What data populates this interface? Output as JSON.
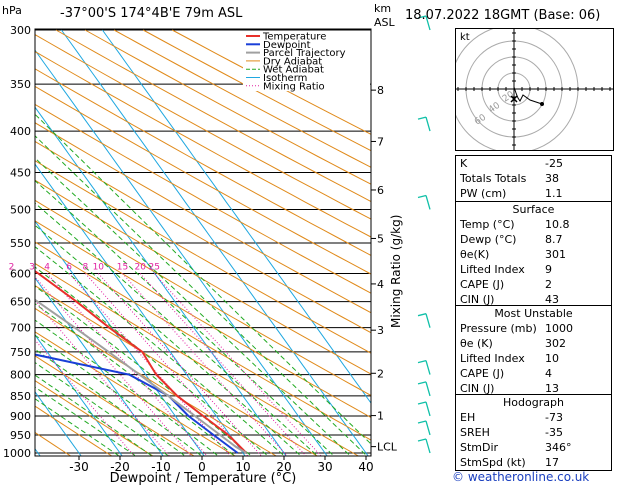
{
  "header": {
    "location": "-37°00'S  174°4B'E  79m  ASL",
    "datetime": "18.07.2022  18GMT  (Base: 06)",
    "hpa_label": "hPa",
    "km_label": "km",
    "asl_label": "ASL"
  },
  "colors": {
    "temperature": "#e8302a",
    "dewpoint": "#1a3fd8",
    "parcel": "#a0a0a0",
    "dry_adiabat": "#e08a1a",
    "wet_adiabat": "#22aa22",
    "isotherm": "#20a8e0",
    "mixing_ratio": "#e020a0",
    "wind_barbs": "#10c0a8"
  },
  "chart_data": {
    "type": "line",
    "title": "",
    "xlabel": "Dewpoint / Temperature (°C)",
    "ylabel_right": "Mixing Ratio (g/kg)",
    "x_ticks": [
      -30,
      -20,
      -10,
      0,
      10,
      20,
      30,
      40
    ],
    "xlim": [
      -40,
      40
    ],
    "pressure_levels": [
      300,
      350,
      400,
      450,
      500,
      550,
      600,
      650,
      700,
      750,
      800,
      850,
      900,
      950,
      1000
    ],
    "ylim_hpa": [
      300,
      1015
    ],
    "km_ticks": [
      {
        "label": "8",
        "p": 356
      },
      {
        "label": "7",
        "p": 412
      },
      {
        "label": "6",
        "p": 473
      },
      {
        "label": "5",
        "p": 543
      },
      {
        "label": "4",
        "p": 618
      },
      {
        "label": "3",
        "p": 705
      },
      {
        "label": "2",
        "p": 797
      },
      {
        "label": "1",
        "p": 899
      },
      {
        "label": "LCL",
        "p": 982
      }
    ],
    "mixing_ratio_labels": [
      "1",
      "2",
      "3",
      "4",
      "6",
      "8",
      "10",
      "15",
      "20",
      "25"
    ],
    "mixing_ratio_values": [
      1,
      2,
      3,
      4,
      6,
      8,
      10,
      15,
      20,
      25
    ],
    "legend": [
      "Temperature",
      "Dewpoint",
      "Parcel Trajectory",
      "Dry Adiabat",
      "Wet Adiabat",
      "Isotherm",
      "Mixing Ratio"
    ],
    "legend_position": "top-right",
    "series": [
      {
        "name": "Temperature",
        "p": [
          1000,
          950,
          900,
          850,
          800,
          750,
          700,
          650,
          600,
          550,
          500,
          450,
          400,
          350,
          300
        ],
        "t": [
          10.8,
          9.6,
          6.8,
          4.0,
          2.6,
          3.2,
          -0.6,
          -4.0,
          -8.4,
          -13.6,
          -18.8,
          -25.0,
          -32.5,
          -41.0,
          -48.5
        ]
      },
      {
        "name": "Dewpoint",
        "p": [
          1000,
          950,
          900,
          850,
          800,
          750,
          700,
          650,
          600,
          550,
          500,
          450,
          400,
          350,
          300
        ],
        "t": [
          8.7,
          6.0,
          3.2,
          1.9,
          -4.0,
          -26.0,
          -38.0,
          -36.5,
          -32.5,
          -32.0,
          -24.0,
          -25.5,
          -33.0,
          -36.5,
          -43.0
        ]
      },
      {
        "name": "Parcel Trajectory",
        "p": [
          1000,
          982,
          950,
          900,
          850,
          800,
          750,
          700,
          650,
          600,
          550,
          500,
          450,
          400,
          350,
          300
        ],
        "t": [
          10.8,
          9.3,
          7.6,
          4.8,
          1.8,
          -1.5,
          -5.0,
          -9.0,
          -13.5,
          -18.5,
          -24.0,
          -30.0,
          -37.0,
          -45.0,
          -54.0,
          -63.0
        ]
      }
    ]
  },
  "hodograph": {
    "label": "kt",
    "ring_labels": [
      "20",
      "40",
      "60"
    ]
  },
  "indices": {
    "basic": [
      {
        "label": "K",
        "value": "-25"
      },
      {
        "label": "Totals Totals",
        "value": "38"
      },
      {
        "label": "PW (cm)",
        "value": "1.1"
      }
    ],
    "surface_title": "Surface",
    "surface": [
      {
        "label": "Temp (°C)",
        "value": "10.8"
      },
      {
        "label": "Dewp (°C)",
        "value": "8.7"
      },
      {
        "label": "θe(K)",
        "value": "301"
      },
      {
        "label": "Lifted Index",
        "value": "9"
      },
      {
        "label": "CAPE (J)",
        "value": "2"
      },
      {
        "label": "CIN (J)",
        "value": "43"
      }
    ],
    "mu_title": "Most Unstable",
    "most_unstable": [
      {
        "label": "Pressure (mb)",
        "value": "1000"
      },
      {
        "label": "θe (K)",
        "value": "302"
      },
      {
        "label": "Lifted Index",
        "value": "10"
      },
      {
        "label": "CAPE (J)",
        "value": "4"
      },
      {
        "label": "CIN (J)",
        "value": "13"
      }
    ],
    "hodo_title": "Hodograph",
    "hodograph": [
      {
        "label": "EH",
        "value": "-73"
      },
      {
        "label": "SREH",
        "value": "-35"
      },
      {
        "label": "StmDir",
        "value": "346°"
      },
      {
        "label": "StmSpd (kt)",
        "value": "17"
      }
    ]
  },
  "copyright": "© weatheronline.co.uk"
}
